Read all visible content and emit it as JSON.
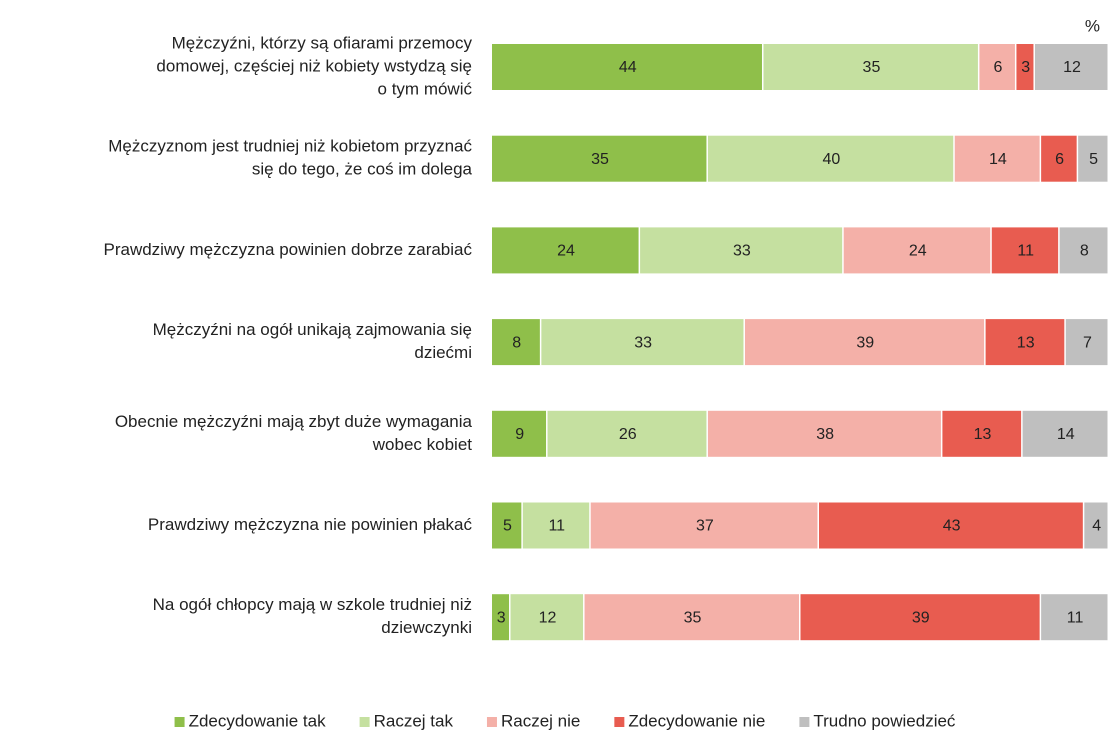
{
  "chart_data": {
    "type": "stacked_barh",
    "unit_label": "%",
    "categories": [
      [
        "Mężczyźni, którzy są ofiarami przemocy",
        "domowej, częściej niż kobiety wstydzą się",
        "o tym mówić"
      ],
      [
        "Mężczyznom jest trudniej niż kobietom przyznać",
        "się do tego, że coś im dolega"
      ],
      [
        "Prawdziwy mężczyzna powinien dobrze zarabiać"
      ],
      [
        "Mężczyźni na ogół unikają zajmowania się",
        "dziećmi"
      ],
      [
        "Obecnie mężczyźni mają zbyt duże wymagania",
        "wobec kobiet"
      ],
      [
        "Prawdziwy mężczyzna nie powinien płakać"
      ],
      [
        "Na ogół chłopcy mają w szkole trudniej niż",
        "dziewczynki"
      ]
    ],
    "series": [
      {
        "name": "Zdecydowanie tak",
        "color": "#8fbf4a",
        "values": [
          44,
          35,
          24,
          8,
          9,
          5,
          3
        ]
      },
      {
        "name": "Raczej tak",
        "color": "#c5e0a0",
        "values": [
          35,
          40,
          33,
          33,
          26,
          11,
          12
        ]
      },
      {
        "name": "Raczej nie",
        "color": "#f4b0a8",
        "values": [
          6,
          14,
          24,
          39,
          38,
          37,
          35
        ]
      },
      {
        "name": "Zdecydowanie nie",
        "color": "#e85c50",
        "values": [
          3,
          6,
          11,
          13,
          13,
          43,
          39
        ]
      },
      {
        "name": "Trudno powiedzieć",
        "color": "#bfbfbf",
        "values": [
          12,
          5,
          8,
          7,
          14,
          4,
          11
        ]
      }
    ],
    "xlim": [
      0,
      100
    ]
  }
}
